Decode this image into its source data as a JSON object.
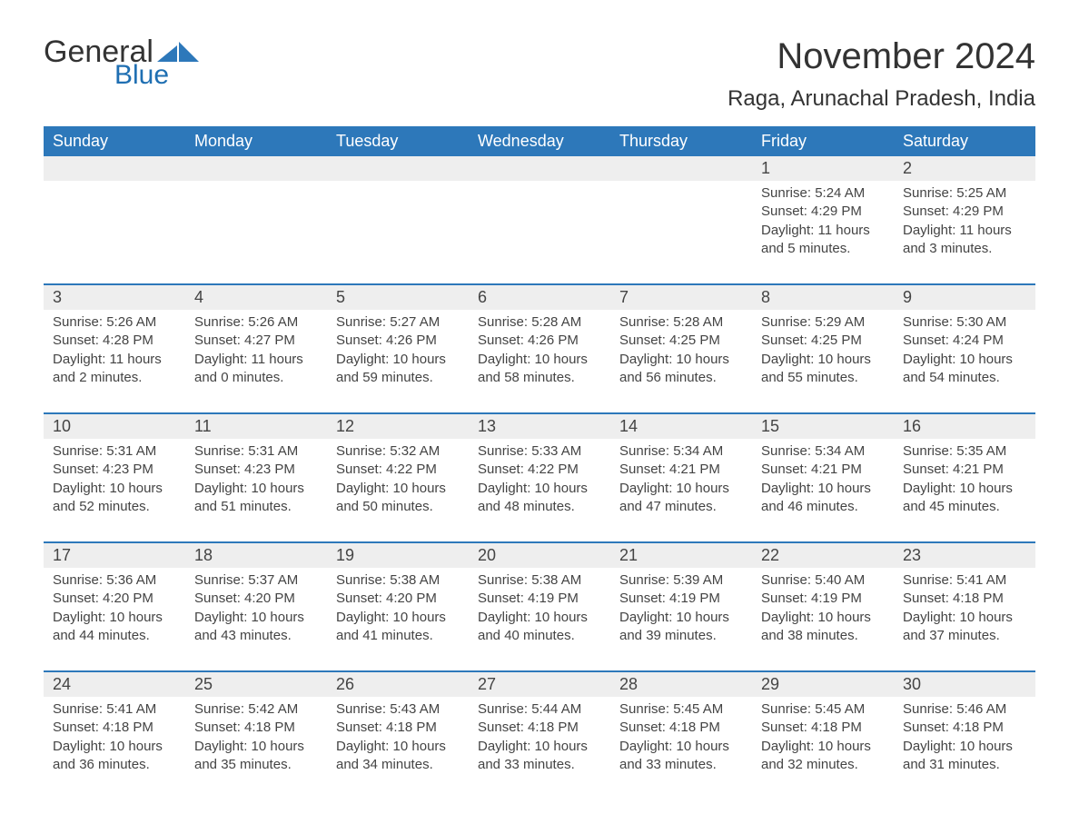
{
  "logo": {
    "text_general": "General",
    "text_blue": "Blue",
    "shape_color": "#2d78ba"
  },
  "header": {
    "month_title": "November 2024",
    "location": "Raga, Arunachal Pradesh, India",
    "title_fontsize": 40,
    "location_fontsize": 24,
    "text_color": "#333333"
  },
  "calendar": {
    "type": "table",
    "header_bg": "#2d78ba",
    "header_text_color": "#ffffff",
    "daynum_bg": "#eeeeee",
    "row_border_color": "#2d78ba",
    "body_text_color": "#444444",
    "body_fontsize": 15,
    "daynum_fontsize": 18,
    "weekdays": [
      "Sunday",
      "Monday",
      "Tuesday",
      "Wednesday",
      "Thursday",
      "Friday",
      "Saturday"
    ],
    "weeks": [
      [
        null,
        null,
        null,
        null,
        null,
        {
          "day": "1",
          "sunrise": "Sunrise: 5:24 AM",
          "sunset": "Sunset: 4:29 PM",
          "daylight": "Daylight: 11 hours and 5 minutes."
        },
        {
          "day": "2",
          "sunrise": "Sunrise: 5:25 AM",
          "sunset": "Sunset: 4:29 PM",
          "daylight": "Daylight: 11 hours and 3 minutes."
        }
      ],
      [
        {
          "day": "3",
          "sunrise": "Sunrise: 5:26 AM",
          "sunset": "Sunset: 4:28 PM",
          "daylight": "Daylight: 11 hours and 2 minutes."
        },
        {
          "day": "4",
          "sunrise": "Sunrise: 5:26 AM",
          "sunset": "Sunset: 4:27 PM",
          "daylight": "Daylight: 11 hours and 0 minutes."
        },
        {
          "day": "5",
          "sunrise": "Sunrise: 5:27 AM",
          "sunset": "Sunset: 4:26 PM",
          "daylight": "Daylight: 10 hours and 59 minutes."
        },
        {
          "day": "6",
          "sunrise": "Sunrise: 5:28 AM",
          "sunset": "Sunset: 4:26 PM",
          "daylight": "Daylight: 10 hours and 58 minutes."
        },
        {
          "day": "7",
          "sunrise": "Sunrise: 5:28 AM",
          "sunset": "Sunset: 4:25 PM",
          "daylight": "Daylight: 10 hours and 56 minutes."
        },
        {
          "day": "8",
          "sunrise": "Sunrise: 5:29 AM",
          "sunset": "Sunset: 4:25 PM",
          "daylight": "Daylight: 10 hours and 55 minutes."
        },
        {
          "day": "9",
          "sunrise": "Sunrise: 5:30 AM",
          "sunset": "Sunset: 4:24 PM",
          "daylight": "Daylight: 10 hours and 54 minutes."
        }
      ],
      [
        {
          "day": "10",
          "sunrise": "Sunrise: 5:31 AM",
          "sunset": "Sunset: 4:23 PM",
          "daylight": "Daylight: 10 hours and 52 minutes."
        },
        {
          "day": "11",
          "sunrise": "Sunrise: 5:31 AM",
          "sunset": "Sunset: 4:23 PM",
          "daylight": "Daylight: 10 hours and 51 minutes."
        },
        {
          "day": "12",
          "sunrise": "Sunrise: 5:32 AM",
          "sunset": "Sunset: 4:22 PM",
          "daylight": "Daylight: 10 hours and 50 minutes."
        },
        {
          "day": "13",
          "sunrise": "Sunrise: 5:33 AM",
          "sunset": "Sunset: 4:22 PM",
          "daylight": "Daylight: 10 hours and 48 minutes."
        },
        {
          "day": "14",
          "sunrise": "Sunrise: 5:34 AM",
          "sunset": "Sunset: 4:21 PM",
          "daylight": "Daylight: 10 hours and 47 minutes."
        },
        {
          "day": "15",
          "sunrise": "Sunrise: 5:34 AM",
          "sunset": "Sunset: 4:21 PM",
          "daylight": "Daylight: 10 hours and 46 minutes."
        },
        {
          "day": "16",
          "sunrise": "Sunrise: 5:35 AM",
          "sunset": "Sunset: 4:21 PM",
          "daylight": "Daylight: 10 hours and 45 minutes."
        }
      ],
      [
        {
          "day": "17",
          "sunrise": "Sunrise: 5:36 AM",
          "sunset": "Sunset: 4:20 PM",
          "daylight": "Daylight: 10 hours and 44 minutes."
        },
        {
          "day": "18",
          "sunrise": "Sunrise: 5:37 AM",
          "sunset": "Sunset: 4:20 PM",
          "daylight": "Daylight: 10 hours and 43 minutes."
        },
        {
          "day": "19",
          "sunrise": "Sunrise: 5:38 AM",
          "sunset": "Sunset: 4:20 PM",
          "daylight": "Daylight: 10 hours and 41 minutes."
        },
        {
          "day": "20",
          "sunrise": "Sunrise: 5:38 AM",
          "sunset": "Sunset: 4:19 PM",
          "daylight": "Daylight: 10 hours and 40 minutes."
        },
        {
          "day": "21",
          "sunrise": "Sunrise: 5:39 AM",
          "sunset": "Sunset: 4:19 PM",
          "daylight": "Daylight: 10 hours and 39 minutes."
        },
        {
          "day": "22",
          "sunrise": "Sunrise: 5:40 AM",
          "sunset": "Sunset: 4:19 PM",
          "daylight": "Daylight: 10 hours and 38 minutes."
        },
        {
          "day": "23",
          "sunrise": "Sunrise: 5:41 AM",
          "sunset": "Sunset: 4:18 PM",
          "daylight": "Daylight: 10 hours and 37 minutes."
        }
      ],
      [
        {
          "day": "24",
          "sunrise": "Sunrise: 5:41 AM",
          "sunset": "Sunset: 4:18 PM",
          "daylight": "Daylight: 10 hours and 36 minutes."
        },
        {
          "day": "25",
          "sunrise": "Sunrise: 5:42 AM",
          "sunset": "Sunset: 4:18 PM",
          "daylight": "Daylight: 10 hours and 35 minutes."
        },
        {
          "day": "26",
          "sunrise": "Sunrise: 5:43 AM",
          "sunset": "Sunset: 4:18 PM",
          "daylight": "Daylight: 10 hours and 34 minutes."
        },
        {
          "day": "27",
          "sunrise": "Sunrise: 5:44 AM",
          "sunset": "Sunset: 4:18 PM",
          "daylight": "Daylight: 10 hours and 33 minutes."
        },
        {
          "day": "28",
          "sunrise": "Sunrise: 5:45 AM",
          "sunset": "Sunset: 4:18 PM",
          "daylight": "Daylight: 10 hours and 33 minutes."
        },
        {
          "day": "29",
          "sunrise": "Sunrise: 5:45 AM",
          "sunset": "Sunset: 4:18 PM",
          "daylight": "Daylight: 10 hours and 32 minutes."
        },
        {
          "day": "30",
          "sunrise": "Sunrise: 5:46 AM",
          "sunset": "Sunset: 4:18 PM",
          "daylight": "Daylight: 10 hours and 31 minutes."
        }
      ]
    ]
  }
}
